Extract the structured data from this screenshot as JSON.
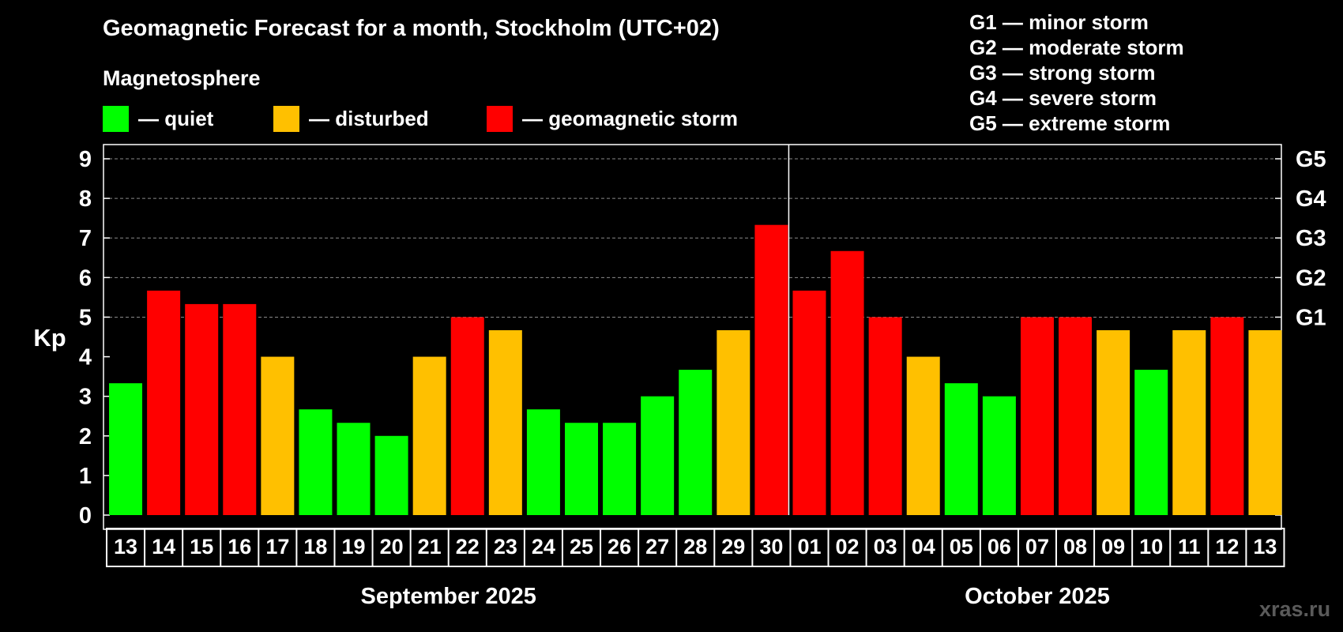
{
  "chart_data": {
    "type": "bar",
    "title": "Geomagnetic Forecast for a month, Stockholm (UTC+02)",
    "ylabel": "Kp",
    "ylim": [
      0,
      9
    ],
    "yticks": [
      "0",
      "1",
      "2",
      "3",
      "4",
      "5",
      "6",
      "7",
      "8",
      "9"
    ],
    "right_axis_labels": [
      {
        "kp": 5,
        "label": "G1"
      },
      {
        "kp": 6,
        "label": "G2"
      },
      {
        "kp": 7,
        "label": "G3"
      },
      {
        "kp": 8,
        "label": "G4"
      },
      {
        "kp": 9,
        "label": "G5"
      }
    ],
    "categories": [
      "13",
      "14",
      "15",
      "16",
      "17",
      "18",
      "19",
      "20",
      "21",
      "22",
      "23",
      "24",
      "25",
      "26",
      "27",
      "28",
      "29",
      "30",
      "01",
      "02",
      "03",
      "04",
      "05",
      "06",
      "07",
      "08",
      "09",
      "10",
      "11",
      "12",
      "13"
    ],
    "values": [
      3.33,
      5.67,
      5.33,
      5.33,
      4.0,
      2.67,
      2.33,
      2.0,
      4.0,
      5.0,
      4.67,
      2.67,
      2.33,
      2.33,
      3.0,
      3.67,
      4.67,
      7.33,
      5.67,
      6.67,
      5.0,
      4.0,
      3.33,
      3.0,
      5.0,
      5.0,
      4.67,
      3.67,
      4.67,
      5.0,
      4.67
    ],
    "levels": [
      "quiet",
      "storm",
      "storm",
      "storm",
      "disturbed",
      "quiet",
      "quiet",
      "quiet",
      "disturbed",
      "storm",
      "disturbed",
      "quiet",
      "quiet",
      "quiet",
      "quiet",
      "quiet",
      "disturbed",
      "storm",
      "storm",
      "storm",
      "storm",
      "disturbed",
      "quiet",
      "quiet",
      "storm",
      "storm",
      "disturbed",
      "quiet",
      "disturbed",
      "storm",
      "disturbed"
    ],
    "months": [
      {
        "label": "September 2025",
        "first_index": 0,
        "last_index": 17
      },
      {
        "label": "October 2025",
        "first_index": 18,
        "last_index": 30
      }
    ],
    "grid": true
  },
  "legend": {
    "heading": "Magnetosphere",
    "items": [
      {
        "key": "quiet",
        "label": "— quiet",
        "color": "#00ff00"
      },
      {
        "key": "disturbed",
        "label": "— disturbed",
        "color": "#ffc000"
      },
      {
        "key": "storm",
        "label": "— geomagnetic storm",
        "color": "#ff0000"
      }
    ]
  },
  "storm_scale": [
    "G1 — minor storm",
    "G2 — moderate storm",
    "G3 — strong storm",
    "G4 — severe storm",
    "G5 — extreme storm"
  ],
  "watermark": "xras.ru"
}
